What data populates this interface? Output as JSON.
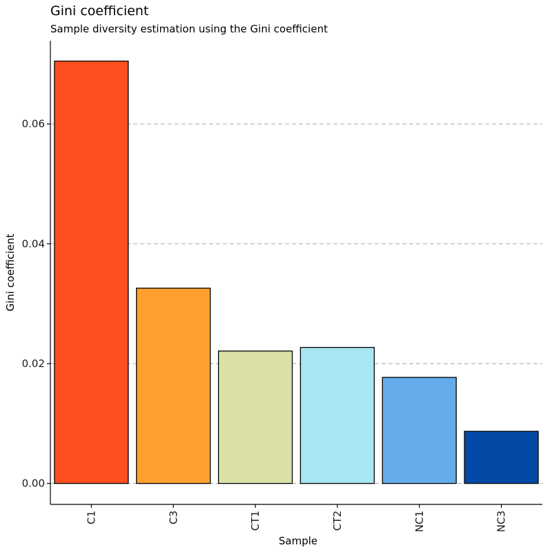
{
  "chart_data": {
    "type": "bar",
    "title": "Gini coefficient",
    "subtitle": "Sample diversity estimation using the Gini coefficient",
    "xlabel": "Sample",
    "ylabel": "Gini coefficient",
    "categories": [
      "C1",
      "C3",
      "CT1",
      "CT2",
      "NC1",
      "NC3"
    ],
    "values": [
      0.0705,
      0.0326,
      0.0221,
      0.0227,
      0.0177,
      0.0087
    ],
    "colors": [
      "#FF4E20",
      "#FFA030",
      "#DBE0A6",
      "#A8E6F2",
      "#64ACEA",
      "#0449A6"
    ],
    "ylim": [
      -0.0035,
      0.0739
    ],
    "yticks": [
      "0.00",
      "0.02",
      "0.04",
      "0.06"
    ],
    "ytick_values": [
      0,
      0.02,
      0.04,
      0.06
    ],
    "grid": "horizontal-dashed",
    "legend": "none"
  }
}
